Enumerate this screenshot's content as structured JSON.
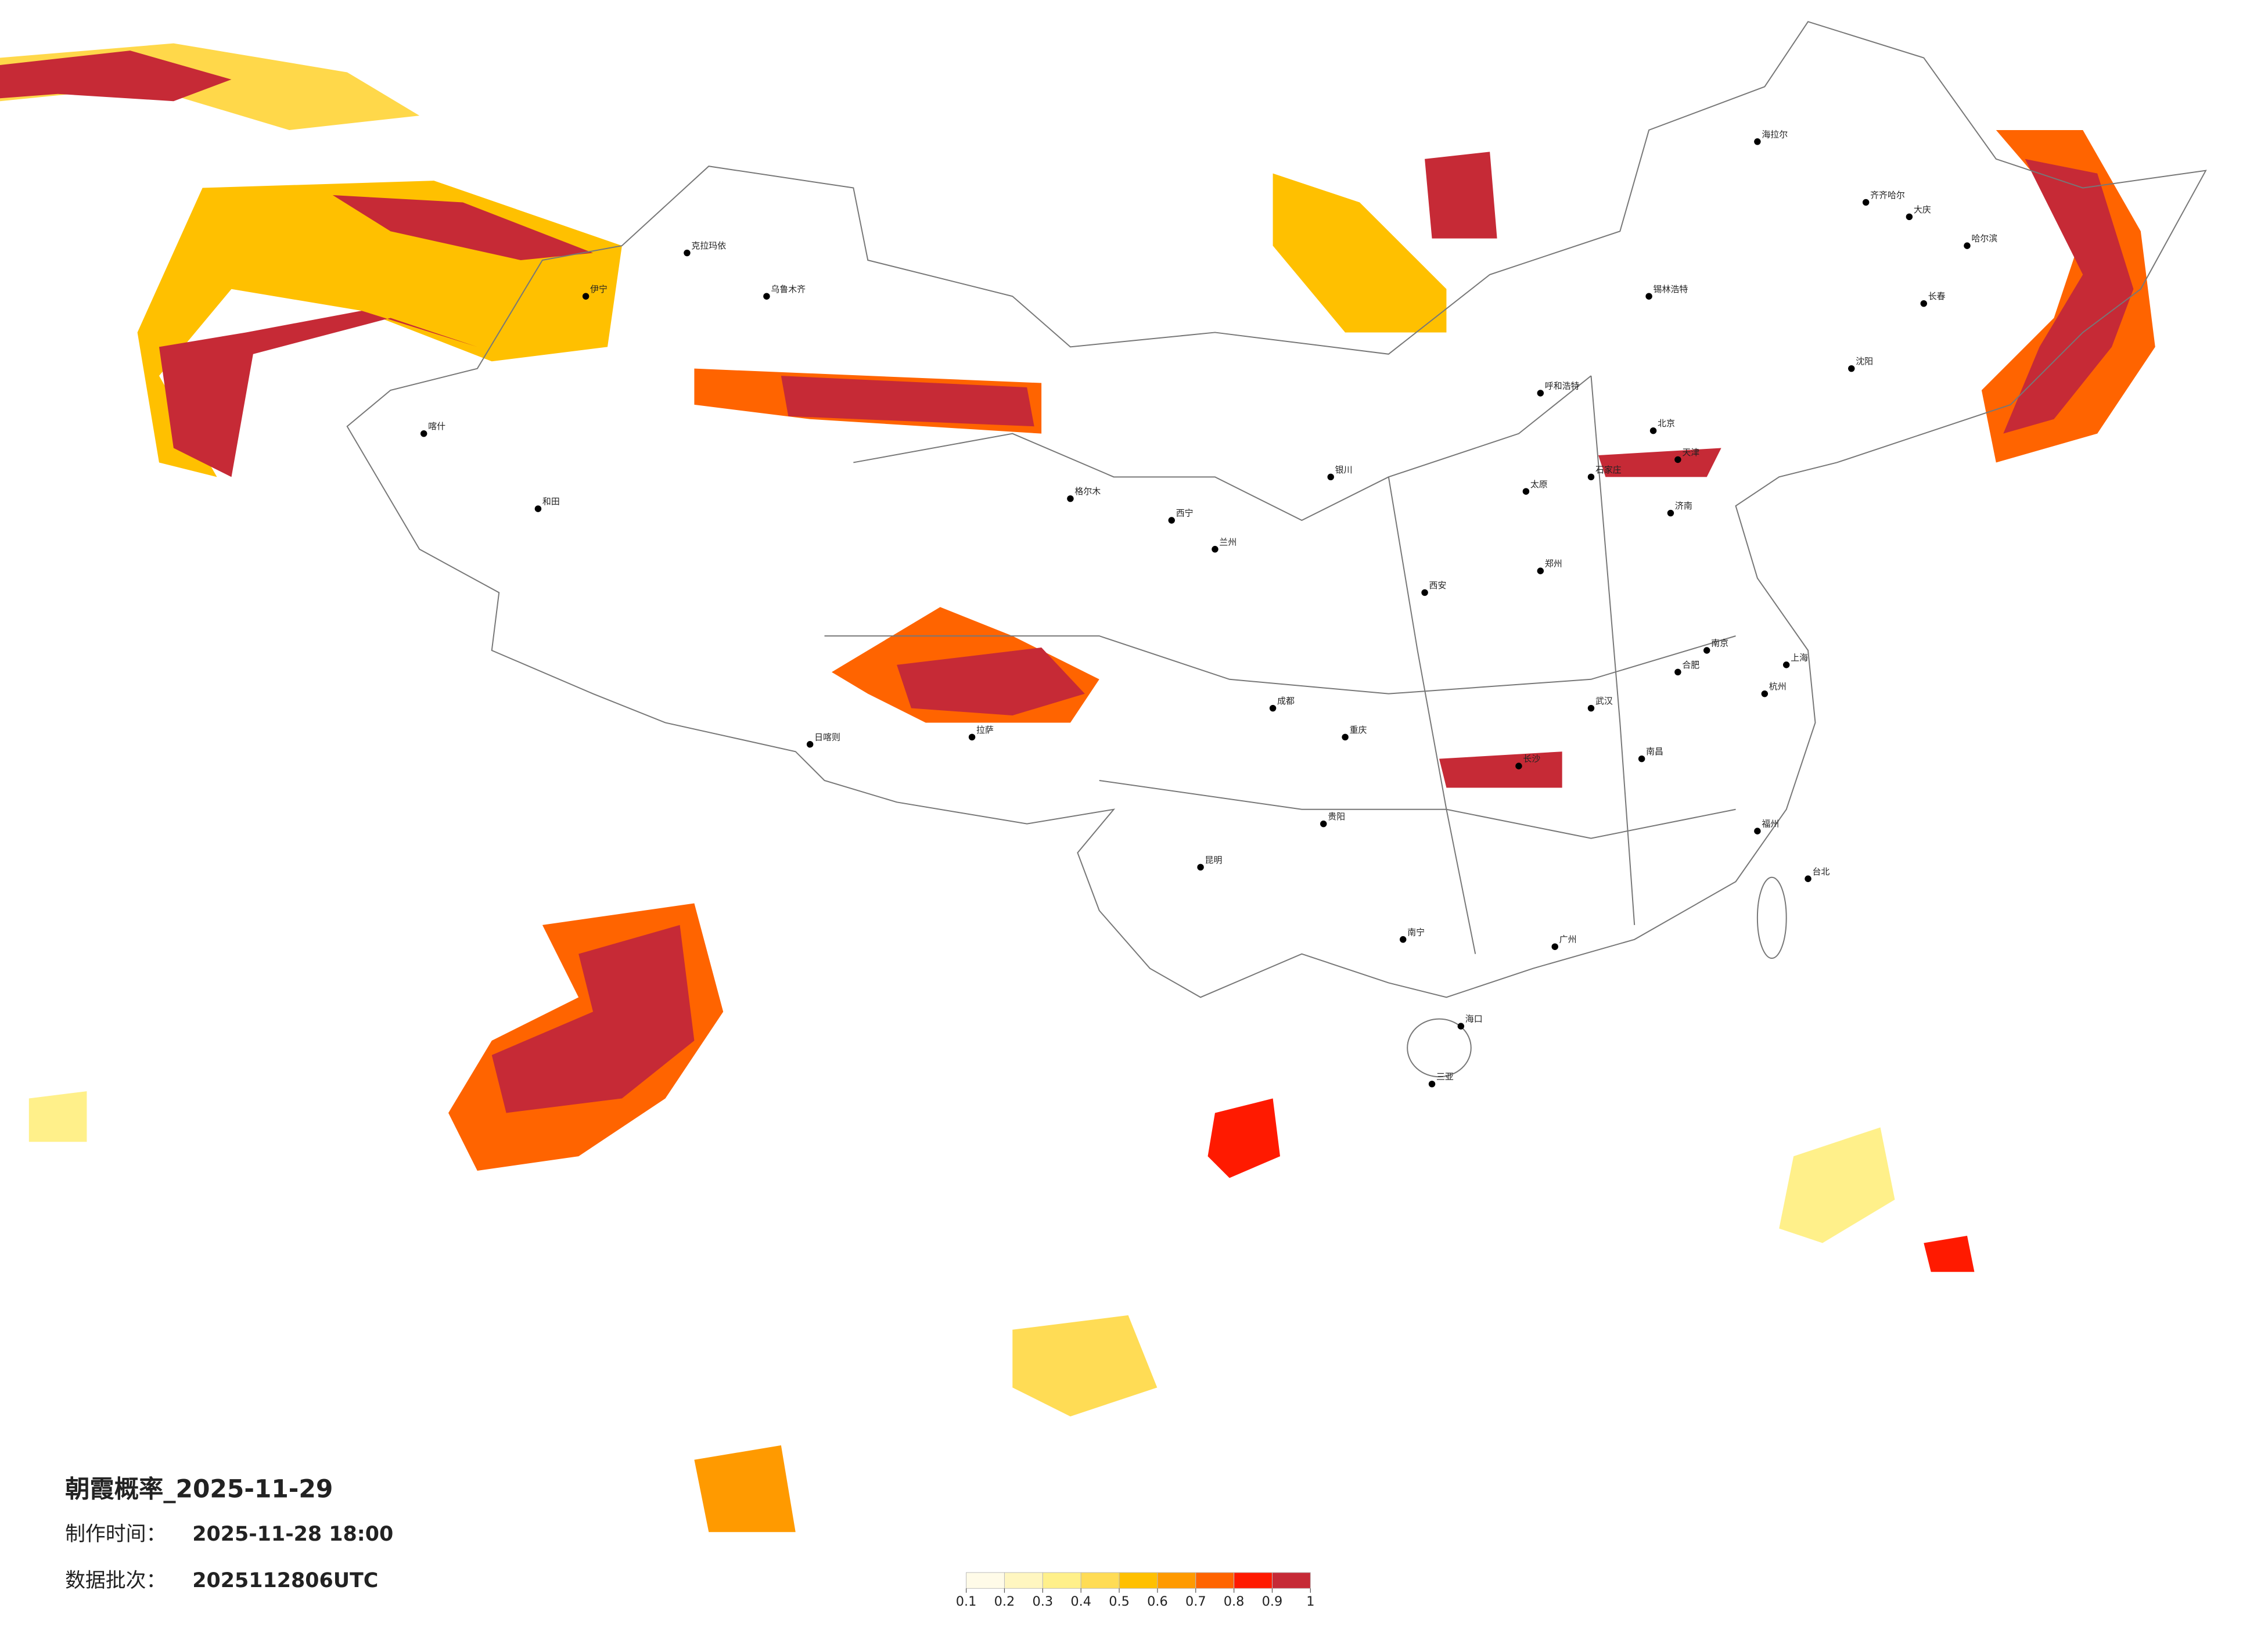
{
  "title": "朝霞概率_2025-11-29",
  "meta": {
    "made_label": "制作时间：",
    "made_value": "2025-11-28 18:00",
    "batch_label": "数据批次：",
    "batch_value": "2025112806UTC"
  },
  "colorbar": {
    "ticks": [
      0.1,
      0.2,
      0.3,
      0.4,
      0.5,
      0.6,
      0.7,
      0.8,
      0.9,
      1
    ],
    "colors": [
      "#fffbe8",
      "#fff6c0",
      "#fff08a",
      "#ffdc55",
      "#ffc000",
      "#ff9a00",
      "#ff6400",
      "#ff1a00",
      "#c62a36"
    ]
  },
  "cities": [
    "北京",
    "天津",
    "上海",
    "广州",
    "重庆",
    "成都",
    "武汉",
    "西安",
    "拉萨",
    "乌鲁木齐",
    "哈尔滨",
    "长春",
    "沈阳",
    "呼和浩特",
    "兰州",
    "西宁",
    "银川",
    "昆明",
    "贵阳",
    "南宁",
    "长沙",
    "南昌",
    "福州",
    "杭州",
    "南京",
    "合肥",
    "济南",
    "郑州",
    "太原",
    "石家庄",
    "海口",
    "台北",
    "喀什",
    "和田",
    "伊宁",
    "克拉玛依",
    "格尔木",
    "日喀则",
    "三亚",
    "大庆",
    "齐齐哈尔",
    "海拉尔",
    "锡林浩特"
  ]
}
